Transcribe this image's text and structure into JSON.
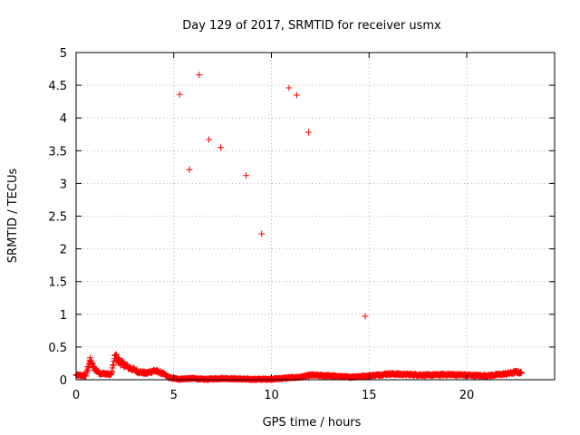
{
  "chart_data": {
    "type": "scatter",
    "title": "Day 129 of 2017, SRMTID for receiver usmx",
    "xlabel": "GPS time / hours",
    "ylabel": "SRMTID / TECUs",
    "xlim": [
      0,
      24.5
    ],
    "ylim": [
      0,
      5
    ],
    "xticks": [
      0,
      5,
      10,
      15,
      20
    ],
    "yticks": [
      0,
      0.5,
      1,
      1.5,
      2,
      2.5,
      3,
      3.5,
      4,
      4.5,
      5
    ],
    "ytick_labels": [
      "0",
      "0.5",
      "1",
      "1.5",
      "2",
      "2.5",
      "3",
      "3.5",
      "4",
      "4.5",
      "5"
    ],
    "grid": true,
    "marker": "+",
    "color": "#ff0000",
    "outliers": [
      {
        "x": 5.3,
        "y": 4.36
      },
      {
        "x": 5.8,
        "y": 3.21
      },
      {
        "x": 6.3,
        "y": 4.66
      },
      {
        "x": 6.8,
        "y": 3.67
      },
      {
        "x": 7.4,
        "y": 3.55
      },
      {
        "x": 8.7,
        "y": 3.12
      },
      {
        "x": 9.5,
        "y": 2.23
      },
      {
        "x": 10.9,
        "y": 4.46
      },
      {
        "x": 11.3,
        "y": 4.35
      },
      {
        "x": 11.9,
        "y": 3.78
      },
      {
        "x": 14.8,
        "y": 0.97
      }
    ],
    "baseline_profile": [
      {
        "x": 0.0,
        "y": 0.07
      },
      {
        "x": 0.5,
        "y": 0.06
      },
      {
        "x": 0.7,
        "y": 0.3
      },
      {
        "x": 0.9,
        "y": 0.18
      },
      {
        "x": 1.2,
        "y": 0.1
      },
      {
        "x": 1.8,
        "y": 0.08
      },
      {
        "x": 2.0,
        "y": 0.36
      },
      {
        "x": 2.2,
        "y": 0.28
      },
      {
        "x": 2.6,
        "y": 0.2
      },
      {
        "x": 3.2,
        "y": 0.12
      },
      {
        "x": 3.6,
        "y": 0.1
      },
      {
        "x": 4.0,
        "y": 0.14
      },
      {
        "x": 4.4,
        "y": 0.1
      },
      {
        "x": 4.8,
        "y": 0.03
      },
      {
        "x": 5.2,
        "y": 0.01
      },
      {
        "x": 6.0,
        "y": 0.02
      },
      {
        "x": 6.5,
        "y": 0.005
      },
      {
        "x": 7.5,
        "y": 0.02
      },
      {
        "x": 9.0,
        "y": 0.005
      },
      {
        "x": 10.0,
        "y": 0.01
      },
      {
        "x": 11.5,
        "y": 0.04
      },
      {
        "x": 12.0,
        "y": 0.07
      },
      {
        "x": 13.0,
        "y": 0.06
      },
      {
        "x": 14.0,
        "y": 0.04
      },
      {
        "x": 15.0,
        "y": 0.06
      },
      {
        "x": 16.0,
        "y": 0.09
      },
      {
        "x": 17.0,
        "y": 0.08
      },
      {
        "x": 18.0,
        "y": 0.07
      },
      {
        "x": 19.0,
        "y": 0.08
      },
      {
        "x": 20.0,
        "y": 0.07
      },
      {
        "x": 21.0,
        "y": 0.06
      },
      {
        "x": 22.0,
        "y": 0.09
      },
      {
        "x": 22.6,
        "y": 0.12
      },
      {
        "x": 22.8,
        "y": 0.1
      }
    ],
    "baseline_span": [
      0,
      22.8
    ]
  }
}
